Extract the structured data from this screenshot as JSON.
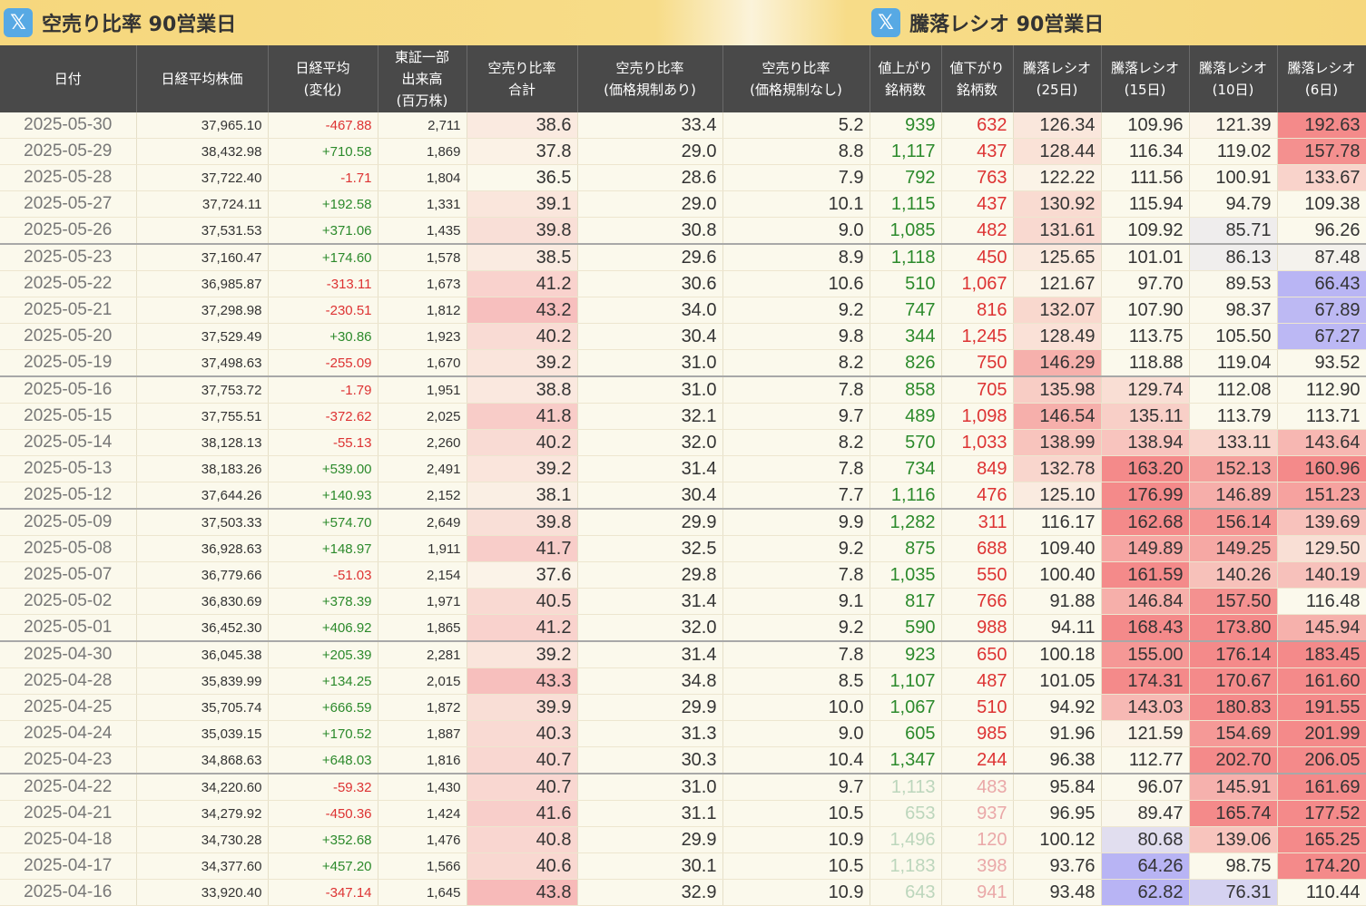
{
  "header": {
    "left_icon": "x-logo-icon",
    "left_title": "空売り比率 90営業日",
    "right_icon": "x-logo-icon",
    "right_title": "騰落レシオ 90営業日"
  },
  "columns": [
    [
      "日付"
    ],
    [
      "日経平均株価"
    ],
    [
      "日経平均",
      "(変化)"
    ],
    [
      "東証一部",
      "出来高",
      "(百万株)"
    ],
    [
      "空売り比率",
      "合計"
    ],
    [
      "空売り比率",
      "(価格規制あり)"
    ],
    [
      "空売り比率",
      "(価格規制なし)"
    ],
    [
      "値上がり",
      "銘柄数"
    ],
    [
      "値下がり",
      "銘柄数"
    ],
    [
      "騰落レシオ",
      "(25日)"
    ],
    [
      "騰落レシオ",
      "(15日)"
    ],
    [
      "騰落レシオ",
      "(10日)"
    ],
    [
      "騰落レシオ",
      "(6日)"
    ]
  ],
  "colors": {
    "header_bg": "#494949",
    "title_bar": "#f6d77d",
    "page_bg": "#fbf9ec",
    "up_green": "#2c8a2c",
    "down_red": "#dd3333",
    "heat_high": "#f48a8a",
    "heat_low": "#b8b4f4"
  },
  "rows": [
    {
      "date": "2025-05-30",
      "nikkei": "37,965.10",
      "change": "-467.88",
      "volume": "2,711",
      "short_total": "38.6",
      "short_reg": "33.4",
      "short_noreg": "5.2",
      "adv": "939",
      "dec": "632",
      "r25": "126.34",
      "r15": "109.96",
      "r10": "121.39",
      "r6": "192.63",
      "week_start": false,
      "faded": false
    },
    {
      "date": "2025-05-29",
      "nikkei": "38,432.98",
      "change": "+710.58",
      "volume": "1,869",
      "short_total": "37.8",
      "short_reg": "29.0",
      "short_noreg": "8.8",
      "adv": "1,117",
      "dec": "437",
      "r25": "128.44",
      "r15": "116.34",
      "r10": "119.02",
      "r6": "157.78",
      "week_start": false,
      "faded": false
    },
    {
      "date": "2025-05-28",
      "nikkei": "37,722.40",
      "change": "-1.71",
      "volume": "1,804",
      "short_total": "36.5",
      "short_reg": "28.6",
      "short_noreg": "7.9",
      "adv": "792",
      "dec": "763",
      "r25": "122.22",
      "r15": "111.56",
      "r10": "100.91",
      "r6": "133.67",
      "week_start": false,
      "faded": false
    },
    {
      "date": "2025-05-27",
      "nikkei": "37,724.11",
      "change": "+192.58",
      "volume": "1,331",
      "short_total": "39.1",
      "short_reg": "29.0",
      "short_noreg": "10.1",
      "adv": "1,115",
      "dec": "437",
      "r25": "130.92",
      "r15": "115.94",
      "r10": "94.79",
      "r6": "109.38",
      "week_start": false,
      "faded": false
    },
    {
      "date": "2025-05-26",
      "nikkei": "37,531.53",
      "change": "+371.06",
      "volume": "1,435",
      "short_total": "39.8",
      "short_reg": "30.8",
      "short_noreg": "9.0",
      "adv": "1,085",
      "dec": "482",
      "r25": "131.61",
      "r15": "109.92",
      "r10": "85.71",
      "r6": "96.26",
      "week_start": false,
      "faded": false
    },
    {
      "date": "2025-05-23",
      "nikkei": "37,160.47",
      "change": "+174.60",
      "volume": "1,578",
      "short_total": "38.5",
      "short_reg": "29.6",
      "short_noreg": "8.9",
      "adv": "1,118",
      "dec": "450",
      "r25": "125.65",
      "r15": "101.01",
      "r10": "86.13",
      "r6": "87.48",
      "week_start": true,
      "faded": false
    },
    {
      "date": "2025-05-22",
      "nikkei": "36,985.87",
      "change": "-313.11",
      "volume": "1,673",
      "short_total": "41.2",
      "short_reg": "30.6",
      "short_noreg": "10.6",
      "adv": "510",
      "dec": "1,067",
      "r25": "121.67",
      "r15": "97.70",
      "r10": "89.53",
      "r6": "66.43",
      "week_start": false,
      "faded": false
    },
    {
      "date": "2025-05-21",
      "nikkei": "37,298.98",
      "change": "-230.51",
      "volume": "1,812",
      "short_total": "43.2",
      "short_reg": "34.0",
      "short_noreg": "9.2",
      "adv": "747",
      "dec": "816",
      "r25": "132.07",
      "r15": "107.90",
      "r10": "98.37",
      "r6": "67.89",
      "week_start": false,
      "faded": false
    },
    {
      "date": "2025-05-20",
      "nikkei": "37,529.49",
      "change": "+30.86",
      "volume": "1,923",
      "short_total": "40.2",
      "short_reg": "30.4",
      "short_noreg": "9.8",
      "adv": "344",
      "dec": "1,245",
      "r25": "128.49",
      "r15": "113.75",
      "r10": "105.50",
      "r6": "67.27",
      "week_start": false,
      "faded": false
    },
    {
      "date": "2025-05-19",
      "nikkei": "37,498.63",
      "change": "-255.09",
      "volume": "1,670",
      "short_total": "39.2",
      "short_reg": "31.0",
      "short_noreg": "8.2",
      "adv": "826",
      "dec": "750",
      "r25": "146.29",
      "r15": "118.88",
      "r10": "119.04",
      "r6": "93.52",
      "week_start": false,
      "faded": false
    },
    {
      "date": "2025-05-16",
      "nikkei": "37,753.72",
      "change": "-1.79",
      "volume": "1,951",
      "short_total": "38.8",
      "short_reg": "31.0",
      "short_noreg": "7.8",
      "adv": "858",
      "dec": "705",
      "r25": "135.98",
      "r15": "129.74",
      "r10": "112.08",
      "r6": "112.90",
      "week_start": true,
      "faded": false
    },
    {
      "date": "2025-05-15",
      "nikkei": "37,755.51",
      "change": "-372.62",
      "volume": "2,025",
      "short_total": "41.8",
      "short_reg": "32.1",
      "short_noreg": "9.7",
      "adv": "489",
      "dec": "1,098",
      "r25": "146.54",
      "r15": "135.11",
      "r10": "113.79",
      "r6": "113.71",
      "week_start": false,
      "faded": false
    },
    {
      "date": "2025-05-14",
      "nikkei": "38,128.13",
      "change": "-55.13",
      "volume": "2,260",
      "short_total": "40.2",
      "short_reg": "32.0",
      "short_noreg": "8.2",
      "adv": "570",
      "dec": "1,033",
      "r25": "138.99",
      "r15": "138.94",
      "r10": "133.11",
      "r6": "143.64",
      "week_start": false,
      "faded": false
    },
    {
      "date": "2025-05-13",
      "nikkei": "38,183.26",
      "change": "+539.00",
      "volume": "2,491",
      "short_total": "39.2",
      "short_reg": "31.4",
      "short_noreg": "7.8",
      "adv": "734",
      "dec": "849",
      "r25": "132.78",
      "r15": "163.20",
      "r10": "152.13",
      "r6": "160.96",
      "week_start": false,
      "faded": false
    },
    {
      "date": "2025-05-12",
      "nikkei": "37,644.26",
      "change": "+140.93",
      "volume": "2,152",
      "short_total": "38.1",
      "short_reg": "30.4",
      "short_noreg": "7.7",
      "adv": "1,116",
      "dec": "476",
      "r25": "125.10",
      "r15": "176.99",
      "r10": "146.89",
      "r6": "151.23",
      "week_start": false,
      "faded": false
    },
    {
      "date": "2025-05-09",
      "nikkei": "37,503.33",
      "change": "+574.70",
      "volume": "2,649",
      "short_total": "39.8",
      "short_reg": "29.9",
      "short_noreg": "9.9",
      "adv": "1,282",
      "dec": "311",
      "r25": "116.17",
      "r15": "162.68",
      "r10": "156.14",
      "r6": "139.69",
      "week_start": true,
      "faded": false
    },
    {
      "date": "2025-05-08",
      "nikkei": "36,928.63",
      "change": "+148.97",
      "volume": "1,911",
      "short_total": "41.7",
      "short_reg": "32.5",
      "short_noreg": "9.2",
      "adv": "875",
      "dec": "688",
      "r25": "109.40",
      "r15": "149.89",
      "r10": "149.25",
      "r6": "129.50",
      "week_start": false,
      "faded": false
    },
    {
      "date": "2025-05-07",
      "nikkei": "36,779.66",
      "change": "-51.03",
      "volume": "2,154",
      "short_total": "37.6",
      "short_reg": "29.8",
      "short_noreg": "7.8",
      "adv": "1,035",
      "dec": "550",
      "r25": "100.40",
      "r15": "161.59",
      "r10": "140.26",
      "r6": "140.19",
      "week_start": false,
      "faded": false
    },
    {
      "date": "2025-05-02",
      "nikkei": "36,830.69",
      "change": "+378.39",
      "volume": "1,971",
      "short_total": "40.5",
      "short_reg": "31.4",
      "short_noreg": "9.1",
      "adv": "817",
      "dec": "766",
      "r25": "91.88",
      "r15": "146.84",
      "r10": "157.50",
      "r6": "116.48",
      "week_start": false,
      "faded": false
    },
    {
      "date": "2025-05-01",
      "nikkei": "36,452.30",
      "change": "+406.92",
      "volume": "1,865",
      "short_total": "41.2",
      "short_reg": "32.0",
      "short_noreg": "9.2",
      "adv": "590",
      "dec": "988",
      "r25": "94.11",
      "r15": "168.43",
      "r10": "173.80",
      "r6": "145.94",
      "week_start": false,
      "faded": false
    },
    {
      "date": "2025-04-30",
      "nikkei": "36,045.38",
      "change": "+205.39",
      "volume": "2,281",
      "short_total": "39.2",
      "short_reg": "31.4",
      "short_noreg": "7.8",
      "adv": "923",
      "dec": "650",
      "r25": "100.18",
      "r15": "155.00",
      "r10": "176.14",
      "r6": "183.45",
      "week_start": true,
      "faded": false
    },
    {
      "date": "2025-04-28",
      "nikkei": "35,839.99",
      "change": "+134.25",
      "volume": "2,015",
      "short_total": "43.3",
      "short_reg": "34.8",
      "short_noreg": "8.5",
      "adv": "1,107",
      "dec": "487",
      "r25": "101.05",
      "r15": "174.31",
      "r10": "170.67",
      "r6": "161.60",
      "week_start": false,
      "faded": false
    },
    {
      "date": "2025-04-25",
      "nikkei": "35,705.74",
      "change": "+666.59",
      "volume": "1,872",
      "short_total": "39.9",
      "short_reg": "29.9",
      "short_noreg": "10.0",
      "adv": "1,067",
      "dec": "510",
      "r25": "94.92",
      "r15": "143.03",
      "r10": "180.83",
      "r6": "191.55",
      "week_start": false,
      "faded": false
    },
    {
      "date": "2025-04-24",
      "nikkei": "35,039.15",
      "change": "+170.52",
      "volume": "1,887",
      "short_total": "40.3",
      "short_reg": "31.3",
      "short_noreg": "9.0",
      "adv": "605",
      "dec": "985",
      "r25": "91.96",
      "r15": "121.59",
      "r10": "154.69",
      "r6": "201.99",
      "week_start": false,
      "faded": false
    },
    {
      "date": "2025-04-23",
      "nikkei": "34,868.63",
      "change": "+648.03",
      "volume": "1,816",
      "short_total": "40.7",
      "short_reg": "30.3",
      "short_noreg": "10.4",
      "adv": "1,347",
      "dec": "244",
      "r25": "96.38",
      "r15": "112.77",
      "r10": "202.70",
      "r6": "206.05",
      "week_start": false,
      "faded": false
    },
    {
      "date": "2025-04-22",
      "nikkei": "34,220.60",
      "change": "-59.32",
      "volume": "1,430",
      "short_total": "40.7",
      "short_reg": "31.0",
      "short_noreg": "9.7",
      "adv": "1,113",
      "dec": "483",
      "r25": "95.84",
      "r15": "96.07",
      "r10": "145.91",
      "r6": "161.69",
      "week_start": true,
      "faded": true
    },
    {
      "date": "2025-04-21",
      "nikkei": "34,279.92",
      "change": "-450.36",
      "volume": "1,424",
      "short_total": "41.6",
      "short_reg": "31.1",
      "short_noreg": "10.5",
      "adv": "653",
      "dec": "937",
      "r25": "96.95",
      "r15": "89.47",
      "r10": "165.74",
      "r6": "177.52",
      "week_start": false,
      "faded": true
    },
    {
      "date": "2025-04-18",
      "nikkei": "34,730.28",
      "change": "+352.68",
      "volume": "1,476",
      "short_total": "40.8",
      "short_reg": "29.9",
      "short_noreg": "10.9",
      "adv": "1,496",
      "dec": "120",
      "r25": "100.12",
      "r15": "80.68",
      "r10": "139.06",
      "r6": "165.25",
      "week_start": false,
      "faded": true
    },
    {
      "date": "2025-04-17",
      "nikkei": "34,377.60",
      "change": "+457.20",
      "volume": "1,566",
      "short_total": "40.6",
      "short_reg": "30.1",
      "short_noreg": "10.5",
      "adv": "1,183",
      "dec": "398",
      "r25": "93.76",
      "r15": "64.26",
      "r10": "98.75",
      "r6": "174.20",
      "week_start": false,
      "faded": true
    },
    {
      "date": "2025-04-16",
      "nikkei": "33,920.40",
      "change": "-347.14",
      "volume": "1,645",
      "short_total": "43.8",
      "short_reg": "32.9",
      "short_noreg": "10.9",
      "adv": "643",
      "dec": "941",
      "r25": "93.48",
      "r15": "62.82",
      "r10": "76.31",
      "r6": "110.44",
      "week_start": false,
      "faded": true
    }
  ]
}
